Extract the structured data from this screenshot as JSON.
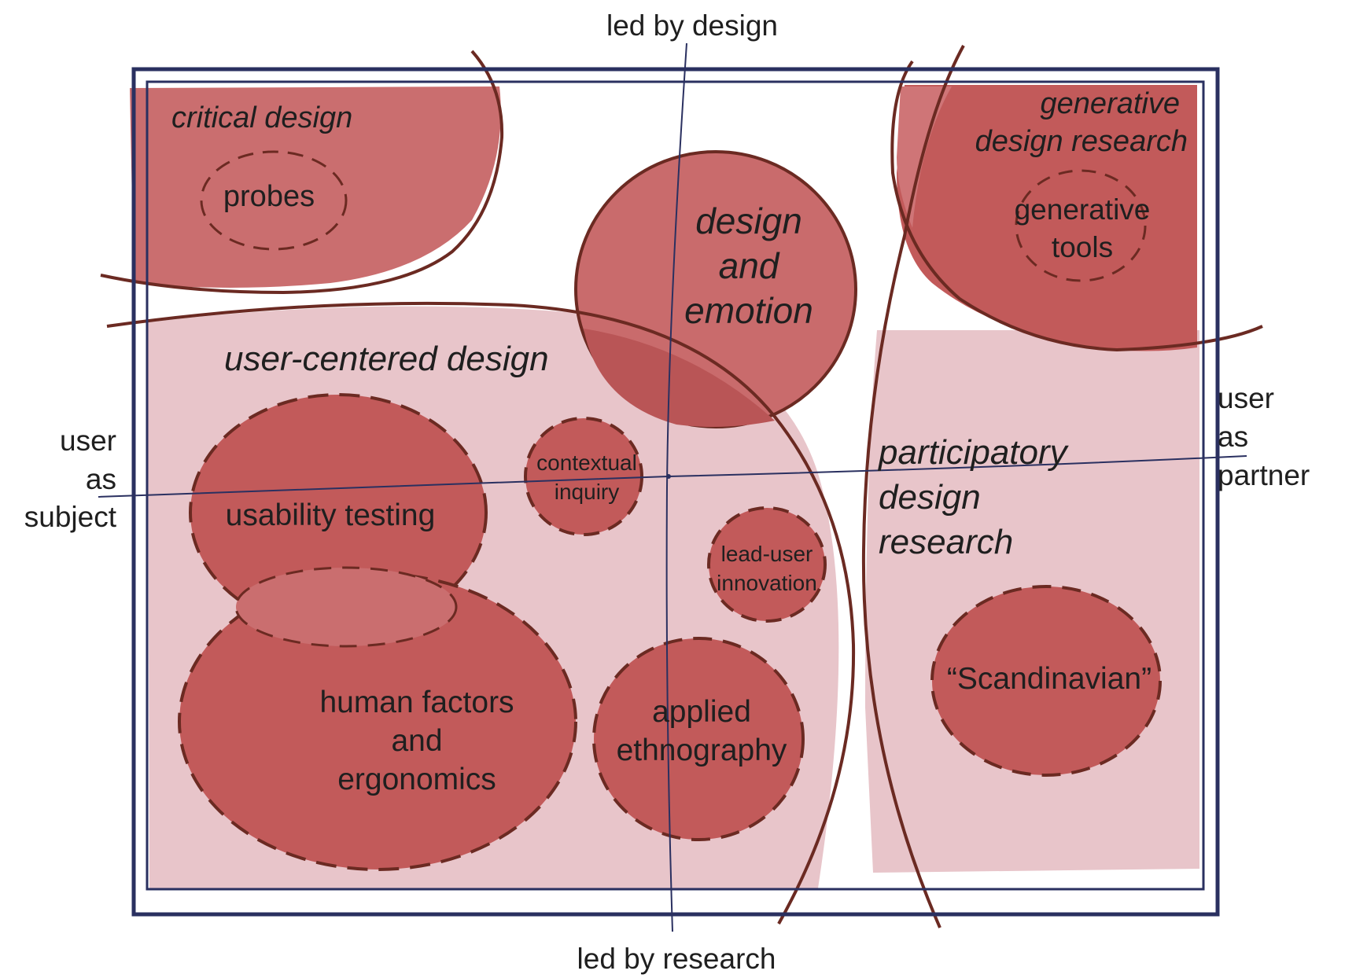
{
  "axes": {
    "top": "led by design",
    "bottom": "led by research",
    "left": [
      "user",
      "as",
      "subject"
    ],
    "right": [
      "user",
      "as",
      "partner"
    ]
  },
  "regions": {
    "critical_design": "critical design",
    "generative_design_research": [
      "generative",
      "design research"
    ],
    "user_centered_design": "user-centered design",
    "participatory_design_research": [
      "participatory",
      "design",
      "research"
    ],
    "design_and_emotion": [
      "design",
      "and",
      "emotion"
    ]
  },
  "methods": {
    "probes": "probes",
    "generative_tools": [
      "generative",
      "tools"
    ],
    "usability_testing": "usability testing",
    "contextual_inquiry": [
      "contextual",
      "inquiry"
    ],
    "lead_user_innovation": [
      "lead-user",
      "innovation"
    ],
    "human_factors": [
      "human factors",
      "and",
      "ergonomics"
    ],
    "applied_ethnography": [
      "applied",
      "ethnography"
    ],
    "scandinavian": "“Scandinavian”"
  },
  "colors": {
    "dark_red": "#c25a5a",
    "medium_red": "#ca6e6f",
    "light_pink": "#e8c5ca",
    "outline": "#6b2a22",
    "frame": "#2a3060"
  }
}
